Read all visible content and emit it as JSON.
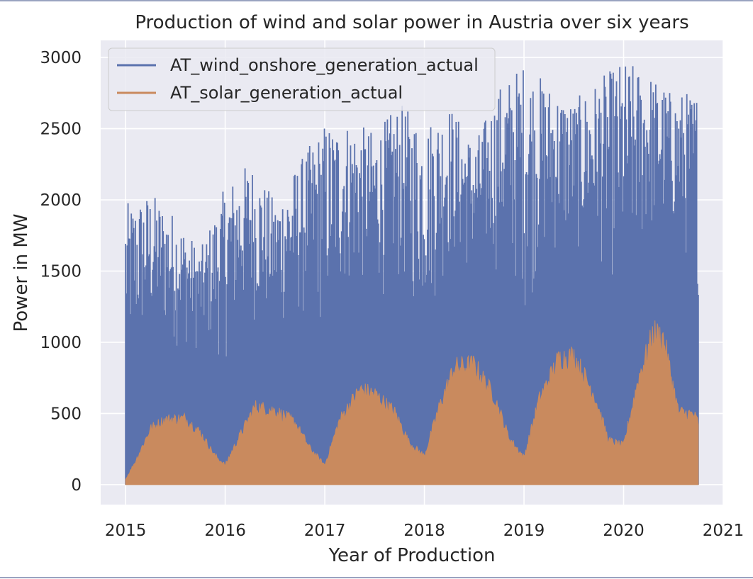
{
  "chart_data": {
    "type": "area",
    "title": "Production of wind and solar power in Austria over six years",
    "xlabel": "Year of Production",
    "ylabel": "Power in MW",
    "xlim": [
      2014.75,
      2021.0
    ],
    "ylim": [
      -140,
      3120
    ],
    "x_ticks": [
      "2015",
      "2016",
      "2017",
      "2018",
      "2019",
      "2020",
      "2021"
    ],
    "y_ticks": [
      "0",
      "500",
      "1000",
      "1500",
      "2000",
      "2500",
      "3000"
    ],
    "grid": true,
    "legend_position": "top-left",
    "series": [
      {
        "name": "AT_wind_onshore_generation_actual",
        "color": "#5b72ad",
        "envelope_x": [
          2015.0,
          2015.25,
          2015.5,
          2015.75,
          2016.0,
          2016.25,
          2016.5,
          2016.75,
          2017.0,
          2017.25,
          2017.5,
          2017.75,
          2018.0,
          2018.25,
          2018.5,
          2018.75,
          2019.0,
          2019.25,
          2019.5,
          2019.75,
          2020.0,
          2020.25,
          2020.5,
          2020.75
        ],
        "envelope_max": [
          1970,
          2060,
          1900,
          1650,
          2100,
          2280,
          2000,
          2280,
          2550,
          2560,
          2480,
          2680,
          2550,
          2680,
          2400,
          2800,
          2980,
          2820,
          2700,
          2850,
          2990,
          2900,
          2750,
          2780
        ],
        "trough_x": [
          2015.0,
          2015.25,
          2015.5,
          2015.75,
          2016.0,
          2016.25,
          2016.5,
          2016.75,
          2017.0,
          2017.25,
          2017.5,
          2017.75,
          2018.0,
          2018.25,
          2018.5,
          2018.75,
          2019.0,
          2019.25,
          2019.5,
          2019.75,
          2020.0,
          2020.25,
          2020.5,
          2020.75
        ],
        "trough_min": [
          60,
          380,
          420,
          480,
          150,
          480,
          500,
          420,
          170,
          600,
          640,
          560,
          250,
          800,
          880,
          720,
          190,
          800,
          960,
          800,
          300,
          950,
          1100,
          500
        ]
      },
      {
        "name": "AT_solar_generation_actual",
        "color": "#c98a5e",
        "envelope_x": [
          2015.0,
          2015.1,
          2015.25,
          2015.4,
          2015.6,
          2015.75,
          2015.9,
          2016.0,
          2016.15,
          2016.3,
          2016.5,
          2016.7,
          2016.85,
          2017.0,
          2017.15,
          2017.35,
          2017.5,
          2017.7,
          2017.85,
          2018.0,
          2018.15,
          2018.3,
          2018.5,
          2018.7,
          2018.85,
          2019.0,
          2019.15,
          2019.35,
          2019.5,
          2019.7,
          2019.85,
          2020.0,
          2020.15,
          2020.3,
          2020.4,
          2020.55,
          2020.7,
          2020.75
        ],
        "envelope_max": [
          40,
          180,
          430,
          500,
          510,
          400,
          220,
          150,
          380,
          600,
          570,
          480,
          280,
          150,
          500,
          730,
          700,
          560,
          320,
          220,
          600,
          900,
          920,
          680,
          360,
          210,
          650,
          970,
          990,
          700,
          340,
          300,
          820,
          1170,
          1130,
          560,
          540,
          480
        ]
      }
    ]
  }
}
